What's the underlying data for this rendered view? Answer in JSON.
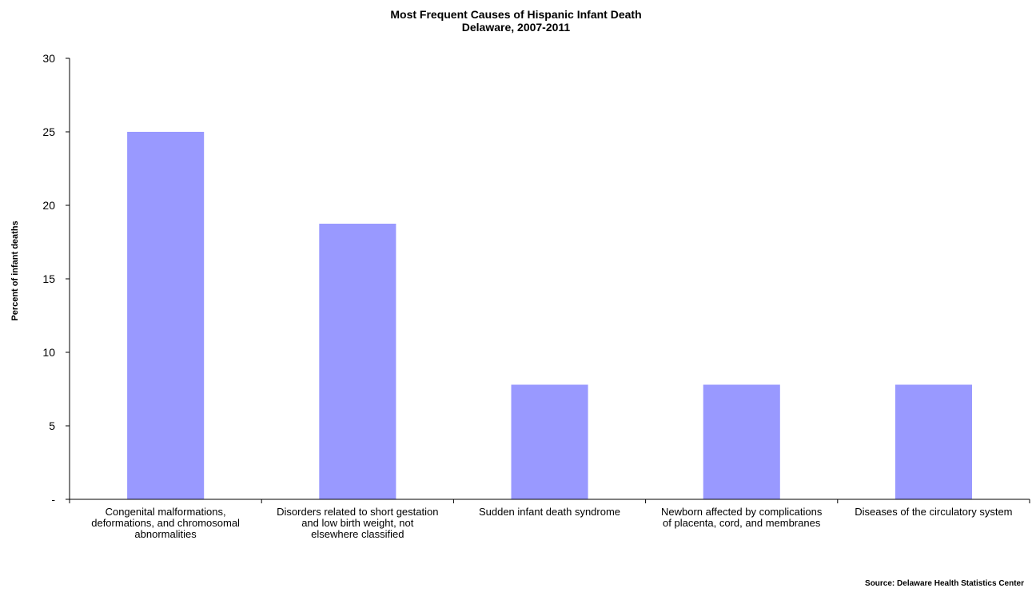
{
  "chart_data": {
    "type": "bar",
    "title": [
      "Most Frequent Causes of Hispanic Infant Death",
      "Delaware, 2007-2011"
    ],
    "ylabel": "Percent of infant deaths",
    "xlabel": "",
    "ylim": [
      0,
      30
    ],
    "yticks": [
      0,
      5,
      10,
      15,
      20,
      25,
      30
    ],
    "ytick_labels": [
      "-",
      "5",
      "10",
      "15",
      "20",
      "25",
      "30"
    ],
    "grid": false,
    "legend": "none",
    "categories": [
      [
        "Congenital malformations,",
        "deformations, and chromosomal",
        "abnormalities"
      ],
      [
        "Disorders related to short gestation",
        "and low birth weight, not",
        "elsewhere classified"
      ],
      [
        "Sudden infant death syndrome"
      ],
      [
        "Newborn affected by complications",
        "of placenta, cord, and membranes"
      ],
      [
        "Diseases of the circulatory system"
      ]
    ],
    "values": [
      25.0,
      18.75,
      7.8,
      7.8,
      7.8
    ],
    "bar_color": "#9999ff",
    "axis_color": "#000000"
  },
  "source": "Source:  Delaware Health Statistics Center"
}
